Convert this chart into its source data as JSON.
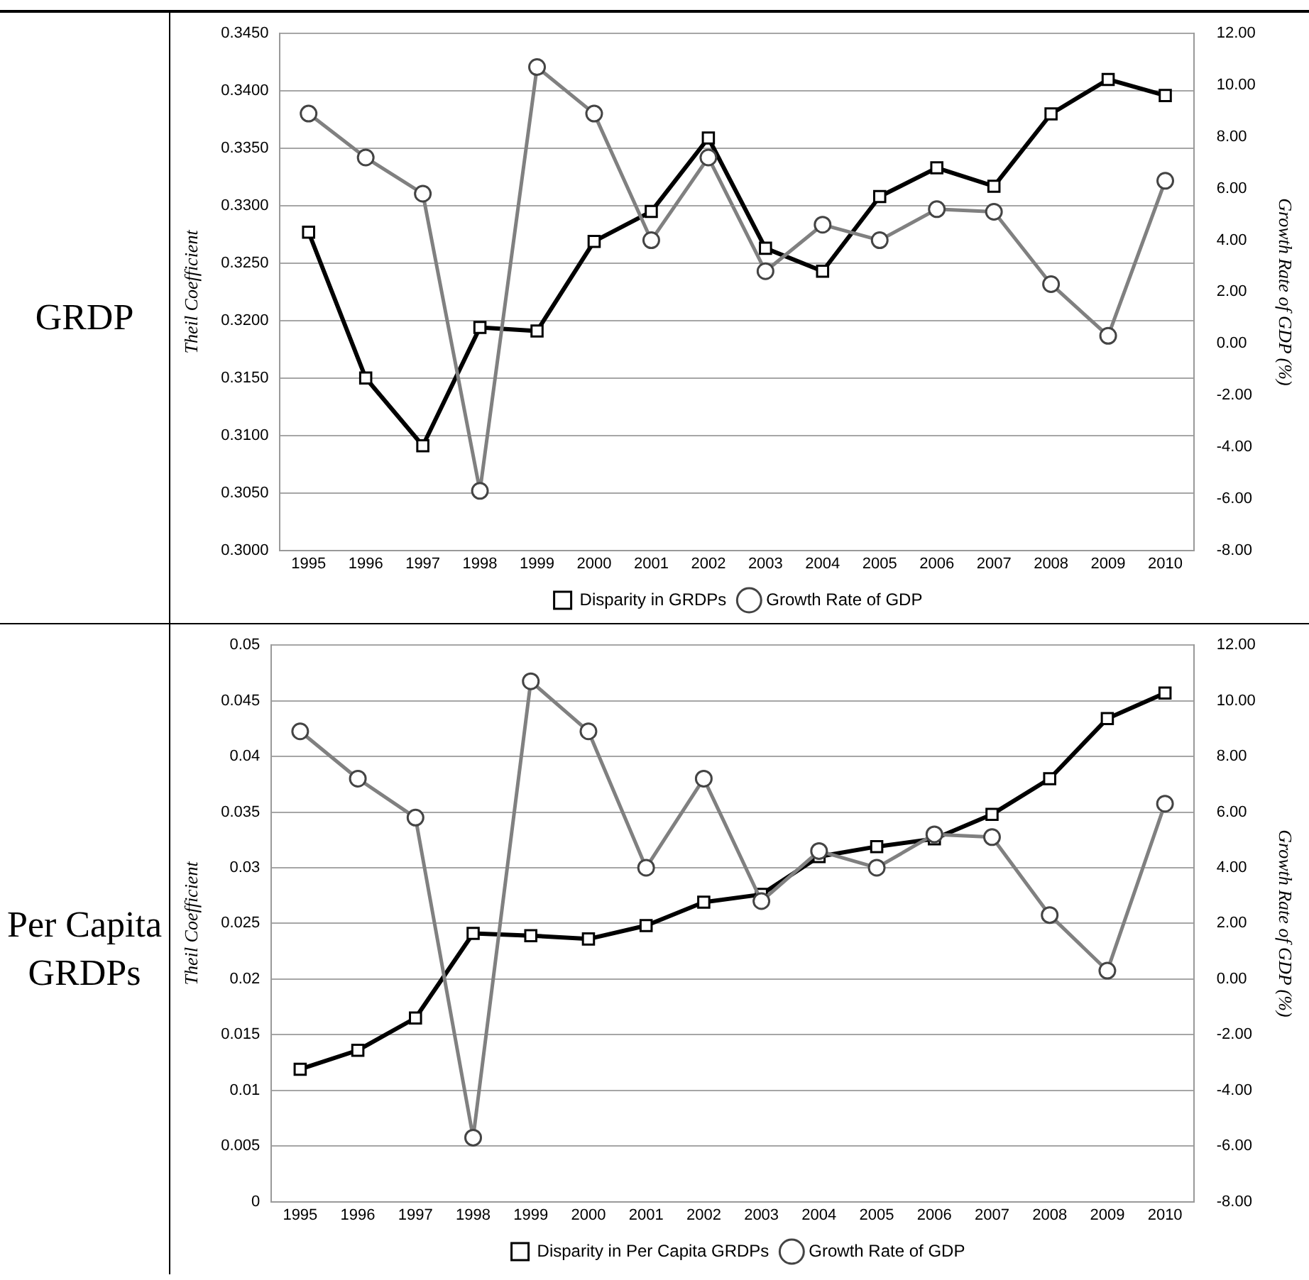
{
  "chart_data": [
    {
      "type": "line",
      "title": "GRDP",
      "categories": [
        "1995",
        "1996",
        "1997",
        "1998",
        "1999",
        "2000",
        "2001",
        "2002",
        "2003",
        "2004",
        "2005",
        "2006",
        "2007",
        "2008",
        "2009",
        "2010"
      ],
      "series": [
        {
          "name": "Disparity in GRDPs",
          "color": "#000000",
          "marker": "square",
          "values": [
            0.3277,
            0.315,
            0.3091,
            0.3194,
            0.3191,
            0.3269,
            0.3295,
            0.3359,
            0.3263,
            0.3243,
            0.3308,
            0.3333,
            0.3317,
            0.338,
            0.341,
            0.3396
          ]
        },
        {
          "name": "Growth Rate of GDP",
          "color": "#808080",
          "marker": "circle",
          "axis": "y2",
          "values": [
            8.9,
            7.2,
            5.8,
            -5.7,
            10.7,
            8.9,
            4.0,
            7.2,
            2.8,
            4.6,
            4.0,
            5.2,
            5.1,
            2.3,
            0.3,
            6.3
          ]
        }
      ],
      "ylabel": "Theil Coefficient",
      "y2label": "Growth Rate of GDP (%)",
      "ylim": [
        0.3,
        0.345
      ],
      "yticks": [
        {
          "value": 0.3,
          "label": "0.3000"
        },
        {
          "value": 0.305,
          "label": "0.3050"
        },
        {
          "value": 0.31,
          "label": "0.3100"
        },
        {
          "value": 0.315,
          "label": "0.3150"
        },
        {
          "value": 0.32,
          "label": "0.3200"
        },
        {
          "value": 0.325,
          "label": "0.3250"
        },
        {
          "value": 0.33,
          "label": "0.3300"
        },
        {
          "value": 0.335,
          "label": "0.3350"
        },
        {
          "value": 0.34,
          "label": "0.3400"
        },
        {
          "value": 0.345,
          "label": "0.3450"
        }
      ],
      "y2lim": [
        -8,
        12
      ],
      "y2ticks": [
        {
          "value": -8,
          "label": "-8.00"
        },
        {
          "value": -6,
          "label": "-6.00"
        },
        {
          "value": -4,
          "label": "-4.00"
        },
        {
          "value": -2,
          "label": "-2.00"
        },
        {
          "value": 0,
          "label": "0.00"
        },
        {
          "value": 2,
          "label": "2.00"
        },
        {
          "value": 4,
          "label": "4.00"
        },
        {
          "value": 6,
          "label": "6.00"
        },
        {
          "value": 8,
          "label": "8.00"
        },
        {
          "value": 10,
          "label": "10.00"
        },
        {
          "value": 12,
          "label": "12.00"
        }
      ],
      "grid": "y",
      "legend": "bottom"
    },
    {
      "type": "line",
      "title": "Per Capita GRDPs",
      "categories": [
        "1995",
        "1996",
        "1997",
        "1998",
        "1999",
        "2000",
        "2001",
        "2002",
        "2003",
        "2004",
        "2005",
        "2006",
        "2007",
        "2008",
        "2009",
        "2010"
      ],
      "series": [
        {
          "name": "Disparity in Per Capita GRDPs",
          "color": "#000000",
          "marker": "square",
          "values": [
            0.0119,
            0.0136,
            0.0165,
            0.0241,
            0.0239,
            0.0236,
            0.0248,
            0.0269,
            0.0276,
            0.031,
            0.0319,
            0.0326,
            0.0348,
            0.038,
            0.0434,
            0.0457
          ]
        },
        {
          "name": "Growth Rate of GDP",
          "color": "#808080",
          "marker": "circle",
          "axis": "y2",
          "values": [
            8.9,
            7.2,
            5.8,
            -5.7,
            10.7,
            8.9,
            4.0,
            7.2,
            2.8,
            4.6,
            4.0,
            5.2,
            5.1,
            2.3,
            0.3,
            6.3
          ]
        }
      ],
      "ylabel": "Theil Coefficient",
      "y2label": "Growth Rate of GDP (%)",
      "ylim": [
        0,
        0.05
      ],
      "yticks": [
        0,
        0.005,
        0.01,
        0.015,
        0.02,
        0.025,
        0.03,
        0.035,
        0.04,
        0.045,
        0.05
      ],
      "y2lim": [
        -8,
        12
      ],
      "y2ticks": [
        {
          "value": -8,
          "label": "-8.00"
        },
        {
          "value": -6,
          "label": "-6.00"
        },
        {
          "value": -4,
          "label": "-4.00"
        },
        {
          "value": -2,
          "label": "-2.00"
        },
        {
          "value": 0,
          "label": "0.00"
        },
        {
          "value": 2,
          "label": "2.00"
        },
        {
          "value": 4,
          "label": "4.00"
        },
        {
          "value": 6,
          "label": "6.00"
        },
        {
          "value": 8,
          "label": "8.00"
        },
        {
          "value": 10,
          "label": "10.00"
        },
        {
          "value": 12,
          "label": "12.00"
        }
      ],
      "grid": "y",
      "legend": "bottom"
    }
  ]
}
